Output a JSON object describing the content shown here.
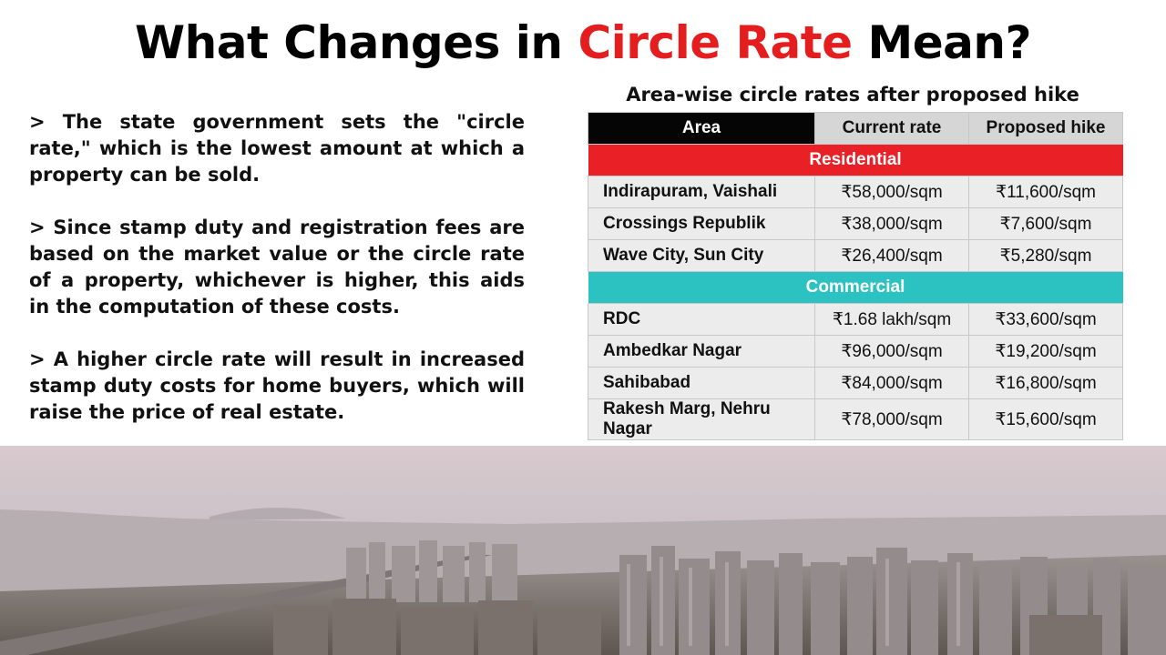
{
  "title": {
    "part1": "What Changes in ",
    "highlight": "Circle Rate",
    "part2": " Mean?"
  },
  "points": [
    "> The state government sets the \"circle rate,\" which is the lowest amount at which a property can be sold.",
    "> Since stamp duty and registration fees are based on the market value or the circle rate of a property, whichever is higher, this aids in the computation of these costs.",
    "> A higher circle rate will result in increased stamp duty costs for home buyers, which will raise the price of real estate."
  ],
  "table": {
    "caption": "Area-wise circle rates after proposed hike",
    "headers": [
      "Area",
      "Current rate",
      "Proposed hike"
    ],
    "residential_label": "Residential",
    "residential": [
      [
        "Indirapuram, Vaishali",
        "₹58,000/sqm",
        "₹11,600/sqm"
      ],
      [
        "Crossings Republik",
        "₹38,000/sqm",
        "₹7,600/sqm"
      ],
      [
        "Wave City, Sun City",
        "₹26,400/sqm",
        "₹5,280/sqm"
      ]
    ],
    "commercial_label": "Commercial",
    "commercial": [
      [
        "RDC",
        "₹1.68 lakh/sqm",
        "₹33,600/sqm"
      ],
      [
        "Ambedkar Nagar",
        "₹96,000/sqm",
        "₹19,200/sqm"
      ],
      [
        "Sahibabad",
        "₹84,000/sqm",
        "₹16,800/sqm"
      ],
      [
        "Rakesh Marg, Nehru Nagar",
        "₹78,000/sqm",
        "₹15,600/sqm"
      ]
    ],
    "colors": {
      "header_area": "#050505",
      "header_other": "#d6d6d6",
      "residential": "#ea2027",
      "commercial": "#2cc2c2",
      "row": "#ececec"
    }
  },
  "accent_color": "#e41e1e"
}
